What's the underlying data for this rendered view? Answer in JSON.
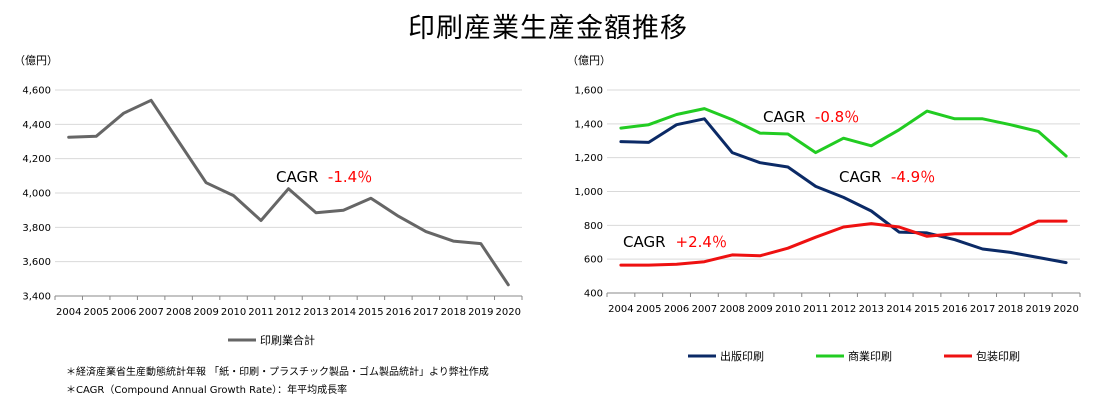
{
  "title": "印刷産業生産金額推移",
  "colors": {
    "total": "#666666",
    "publishing": "#0b2a66",
    "commercial": "#22cc22",
    "packaging": "#ee1111",
    "cagr_value": "#ff0000",
    "grid": "#d9d9d9",
    "axis": "#888888"
  },
  "chart_data": [
    {
      "type": "line",
      "ylabel": "（億円）",
      "ylim": [
        3400,
        4600
      ],
      "yticks": [
        "3,400",
        "3,600",
        "3,800",
        "4,000",
        "4,200",
        "4,400",
        "4,600"
      ],
      "grid": "horizontal",
      "legend_position": "bottom",
      "x": [
        "2004",
        "2005",
        "2006",
        "2007",
        "2008",
        "2009",
        "2010",
        "2011",
        "2012",
        "2013",
        "2014",
        "2015",
        "2016",
        "2017",
        "2018",
        "2019",
        "2020"
      ],
      "series": [
        {
          "name": "印刷業合計",
          "color_key": "total",
          "values": [
            4325,
            4330,
            4465,
            4540,
            4300,
            4060,
            3985,
            3840,
            4025,
            3885,
            3900,
            3970,
            3865,
            3775,
            3720,
            3705,
            3465
          ]
        }
      ],
      "annotations": [
        {
          "label": "CAGR",
          "value": "-1.4％",
          "at_x": "2012",
          "at_y": 4090
        }
      ]
    },
    {
      "type": "line",
      "ylabel": "（億円）",
      "ylim": [
        400,
        1600
      ],
      "yticks": [
        "400",
        "600",
        "800",
        "1,000",
        "1,200",
        "1,400",
        "1,600"
      ],
      "grid": "horizontal",
      "legend_position": "bottom",
      "x": [
        "2004",
        "2005",
        "2006",
        "2007",
        "2008",
        "2009",
        "2010",
        "2011",
        "2012",
        "2013",
        "2014",
        "2015",
        "2016",
        "2017",
        "2018",
        "2019",
        "2020"
      ],
      "series": [
        {
          "name": "出版印刷",
          "color_key": "publishing",
          "values": [
            1295,
            1290,
            1395,
            1430,
            1230,
            1170,
            1145,
            1030,
            965,
            885,
            760,
            755,
            715,
            660,
            640,
            610,
            580
          ]
        },
        {
          "name": "商業印刷",
          "color_key": "commercial",
          "values": [
            1375,
            1395,
            1455,
            1490,
            1425,
            1345,
            1340,
            1230,
            1315,
            1270,
            1365,
            1475,
            1430,
            1430,
            1395,
            1355,
            1210
          ]
        },
        {
          "name": "包装印刷",
          "color_key": "packaging",
          "values": [
            565,
            565,
            570,
            585,
            625,
            620,
            665,
            730,
            790,
            810,
            790,
            735,
            750,
            750,
            750,
            825,
            825
          ]
        }
      ],
      "annotations": [
        {
          "label": "CAGR",
          "value": "-0.8％",
          "at_x": "2009",
          "at_y": 1440
        },
        {
          "label": "CAGR",
          "value": "-4.9％",
          "at_x": "2012",
          "at_y": 1075
        },
        {
          "label": "CAGR",
          "value": "+2.4％",
          "at_x": "2004",
          "at_y": 705
        }
      ]
    }
  ],
  "notes": [
    "＊経済産業省生産動態統計年報 「紙・印刷・プラスチック製品・ゴム製品統計」より弊社作成",
    "＊CAGR（Compound Annual Growth Rate）：年平均成長率"
  ]
}
